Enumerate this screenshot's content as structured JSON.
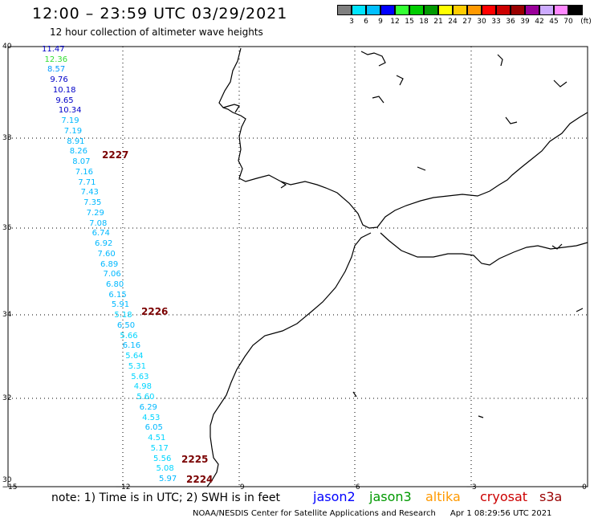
{
  "header": {
    "title": "12:00 – 23:59 UTC 03/29/2021",
    "subtitle": "12 hour collection of altimeter wave heights"
  },
  "colorbar": {
    "colors": [
      "#7f7f7f",
      "#00e5ff",
      "#00bfff",
      "#0000ff",
      "#33ff33",
      "#00cc00",
      "#009900",
      "#ffff00",
      "#ffcc00",
      "#ff9900",
      "#ff0000",
      "#cc0000",
      "#990000",
      "#990099",
      "#ccaaff",
      "#ff88ff",
      "#000000"
    ],
    "labels": [
      "3",
      "6",
      "9",
      "12",
      "15",
      "18",
      "21",
      "24",
      "27",
      "30",
      "33",
      "36",
      "39",
      "42",
      "45",
      "70",
      "(ft)"
    ]
  },
  "axes": {
    "lat_labels": [
      "40",
      "38",
      "36",
      "34",
      "32",
      "30"
    ],
    "lon_labels": [
      "−15",
      "−12",
      "−9",
      "−6",
      "−3",
      "0"
    ]
  },
  "track": {
    "values": [
      "11.47",
      "12.36",
      "8.57",
      "9.76",
      "10.18",
      "9.65",
      "10.34",
      "7.19",
      "7.19",
      "8.91",
      "8.26",
      "8.07",
      "7.16",
      "7.71",
      "7.43",
      "7.35",
      "7.29",
      "7.08",
      "6.74",
      "6.92",
      "7.60",
      "6.89",
      "7.06",
      "6.80",
      "6.15",
      "5.91",
      "5.18",
      "6.50",
      "5.66",
      "6.16",
      "5.64",
      "5.31",
      "5.63",
      "4.98",
      "5.60",
      "6.29",
      "4.53",
      "6.05",
      "4.51",
      "5.17",
      "5.56",
      "5.08",
      "5.97"
    ],
    "colors": [
      "#0000c8",
      "#33dd33",
      "#0099ff",
      "#0000c8",
      "#0000c8",
      "#0000c8",
      "#0000c8",
      "#00b8ff",
      "#00b8ff",
      "#00b8ff",
      "#00b8ff",
      "#00b8ff",
      "#00b8ff",
      "#00b8ff",
      "#00b8ff",
      "#00b8ff",
      "#00b8ff",
      "#00b8ff",
      "#00b8ff",
      "#00b8ff",
      "#00b8ff",
      "#00b8ff",
      "#00b8ff",
      "#00b8ff",
      "#00b8ff",
      "#00b8ff",
      "#00d5ff",
      "#00b8ff",
      "#00d5ff",
      "#00b8ff",
      "#00d5ff",
      "#00d5ff",
      "#00d5ff",
      "#00d5ff",
      "#00d5ff",
      "#00b8ff",
      "#00d5ff",
      "#00b8ff",
      "#00d5ff",
      "#00d5ff",
      "#00d5ff",
      "#00d5ff",
      "#00b8ff"
    ]
  },
  "orbits": [
    "2227",
    "2226",
    "2225",
    "2224"
  ],
  "footer": {
    "note": "note: 1) Time is in UTC; 2) SWH is in feet",
    "missions": [
      {
        "name": "jason2",
        "color": "#0000ff"
      },
      {
        "name": "jason3",
        "color": "#009900"
      },
      {
        "name": "altika",
        "color": "#ff9900"
      },
      {
        "name": "cryosat",
        "color": "#cc0000"
      },
      {
        "name": "s3a",
        "color": "#990000"
      }
    ],
    "credit": "NOAA/NESDIS Center for Satellite Applications and Research",
    "timestamp": "Apr  1 08:29:56 UTC 2021"
  }
}
